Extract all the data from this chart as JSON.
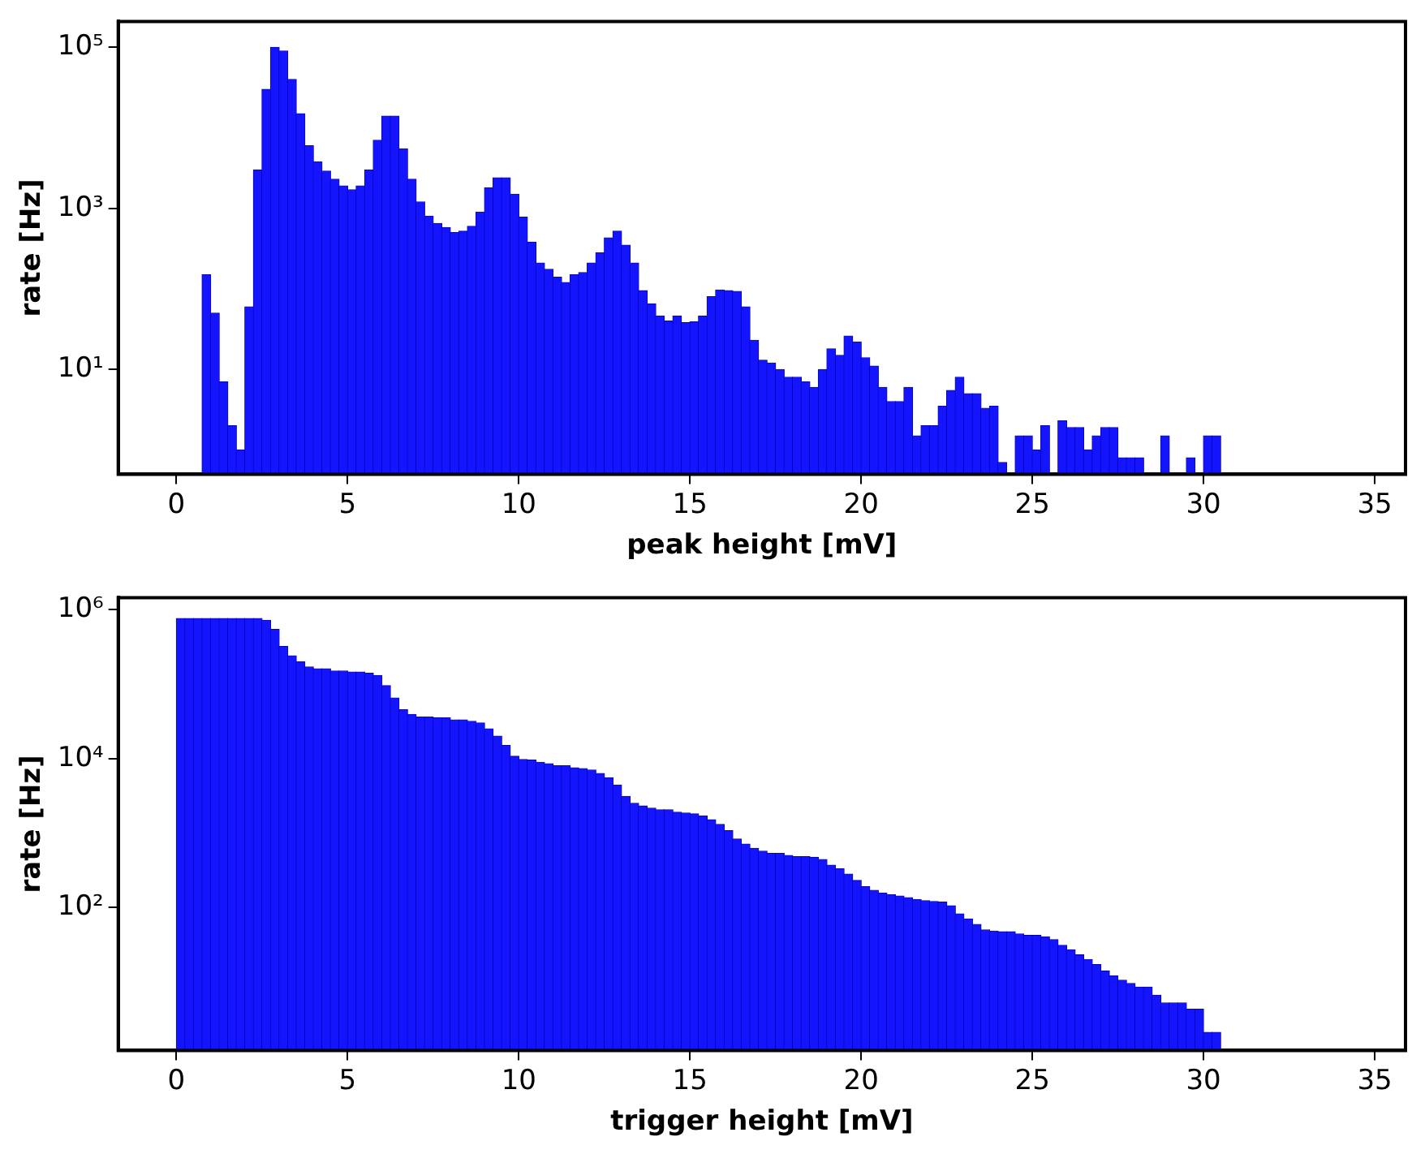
{
  "chart_data": [
    {
      "type": "histogram",
      "xlabel": "peak height [mV]",
      "ylabel": "rate [Hz]",
      "color": "#1414ff",
      "log": "y",
      "bins": [
        0.75,
        1,
        1.25,
        1.5,
        1.75,
        2,
        2.25,
        2.5,
        2.75,
        3,
        3.25,
        3.5,
        3.75,
        4,
        4.25,
        4.5,
        4.75,
        5,
        5.25,
        5.5,
        5.75,
        6,
        6.25,
        6.5,
        6.75,
        7,
        7.25,
        7.5,
        7.75,
        8,
        8.25,
        8.5,
        8.75,
        9,
        9.25,
        9.5,
        9.75,
        10,
        10.25,
        10.5,
        10.75,
        11,
        11.25,
        11.5,
        11.75,
        12,
        12.25,
        12.5,
        12.75,
        13,
        13.25,
        13.5,
        13.75,
        14,
        14.25,
        14.5,
        14.75,
        15,
        15.25,
        15.5,
        15.75,
        16,
        16.25,
        16.5,
        16.75,
        17,
        17.25,
        17.5,
        17.75,
        18,
        18.25,
        18.5,
        18.75,
        19,
        19.25,
        19.5,
        19.75,
        20,
        20.25,
        20.5,
        20.75,
        21,
        21.25,
        21.5,
        21.75,
        22,
        22.25,
        22.5,
        22.75,
        23,
        23.25,
        23.5,
        23.75,
        24,
        24.25,
        24.5,
        24.75,
        25,
        25.25,
        25.5,
        25.75,
        26,
        26.25,
        26.5,
        26.75,
        27,
        27.25,
        27.5,
        27.75,
        28,
        28.25,
        28.5,
        28.75,
        29,
        29.25,
        29.5,
        29.75,
        30,
        30.25,
        30.5
      ],
      "values": [
        150,
        50,
        7,
        2,
        1,
        60,
        3000,
        30000,
        100000,
        90000,
        40000,
        15000,
        6000,
        3800,
        2900,
        2300,
        1900,
        1700,
        1900,
        3000,
        7000,
        14000,
        14000,
        5500,
        2300,
        1200,
        800,
        650,
        580,
        500,
        520,
        600,
        900,
        1800,
        2400,
        2400,
        1500,
        780,
        380,
        210,
        175,
        140,
        120,
        150,
        160,
        210,
        280,
        430,
        520,
        350,
        210,
        95,
        65,
        46,
        40,
        46,
        38,
        39,
        46,
        80,
        97,
        95,
        93,
        60,
        23,
        13,
        12,
        10,
        8,
        8,
        7,
        6,
        10,
        18,
        15,
        26,
        22,
        14,
        11,
        6,
        4,
        4,
        6,
        1.5,
        2,
        2,
        3.5,
        5.5,
        8,
        5,
        5,
        3.3,
        3.5,
        0.7,
        null,
        1.5,
        1.5,
        1,
        2,
        null,
        2.3,
        1.9,
        1.9,
        1,
        1.5,
        1.9,
        1.9,
        0.8,
        0.8,
        0.8,
        null,
        null,
        1.5,
        null,
        null,
        0.8,
        null,
        1.5,
        1.5
      ],
      "xlim": [
        -1.7,
        35.9
      ],
      "xticks": [
        0,
        5,
        10,
        15,
        20,
        25,
        30,
        35
      ],
      "ylim": [
        0.5,
        210000
      ],
      "yticks": [
        {
          "value": 10,
          "label": "10¹"
        },
        {
          "value": 1000,
          "label": "10³"
        },
        {
          "value": 100000,
          "label": "10⁵"
        }
      ]
    },
    {
      "type": "histogram",
      "xlabel": "trigger height [mV]",
      "ylabel": "rate [Hz]",
      "color": "#1414ff",
      "log": "y",
      "bins": [
        0,
        0.25,
        0.5,
        0.75,
        1,
        1.25,
        1.5,
        1.75,
        2,
        2.25,
        2.5,
        2.75,
        3,
        3.25,
        3.5,
        3.75,
        4,
        4.25,
        4.5,
        4.75,
        5,
        5.25,
        5.5,
        5.75,
        6,
        6.25,
        6.5,
        6.75,
        7,
        7.25,
        7.5,
        7.75,
        8,
        8.25,
        8.5,
        8.75,
        9,
        9.25,
        9.5,
        9.75,
        10,
        10.25,
        10.5,
        10.75,
        11,
        11.25,
        11.5,
        11.75,
        12,
        12.25,
        12.5,
        12.75,
        13,
        13.25,
        13.5,
        13.75,
        14,
        14.25,
        14.5,
        14.75,
        15,
        15.25,
        15.5,
        15.75,
        16,
        16.25,
        16.5,
        16.75,
        17,
        17.25,
        17.5,
        17.75,
        18,
        18.25,
        18.5,
        18.75,
        19,
        19.25,
        19.5,
        19.75,
        20,
        20.25,
        20.5,
        20.75,
        21,
        21.25,
        21.5,
        21.75,
        22,
        22.25,
        22.5,
        22.75,
        23,
        23.25,
        23.5,
        23.75,
        24,
        24.25,
        24.5,
        24.75,
        25,
        25.25,
        25.5,
        25.75,
        26,
        26.25,
        26.5,
        26.75,
        27,
        27.25,
        27.5,
        27.75,
        28,
        28.25,
        28.5,
        28.75,
        29,
        29.25,
        29.5,
        29.75,
        30,
        30.25,
        30.5
      ],
      "values": [
        760000,
        760000,
        760000,
        760000,
        760000,
        760000,
        760000,
        760000,
        760000,
        760000,
        720000,
        540000,
        320000,
        240000,
        200000,
        170000,
        160000,
        160000,
        150000,
        150000,
        145000,
        145000,
        140000,
        130000,
        95000,
        65000,
        45000,
        39000,
        36000,
        36000,
        35000,
        35000,
        33000,
        33000,
        31500,
        30000,
        25000,
        20000,
        15000,
        10700,
        9700,
        9500,
        8900,
        8500,
        8000,
        8000,
        7500,
        7300,
        7000,
        6300,
        5500,
        4400,
        3100,
        2500,
        2300,
        2150,
        2050,
        2050,
        1900,
        1850,
        1800,
        1700,
        1500,
        1300,
        1070,
        830,
        710,
        620,
        570,
        530,
        530,
        500,
        480,
        480,
        470,
        440,
        370,
        330,
        280,
        230,
        190,
        170,
        155,
        148,
        142,
        135,
        128,
        123,
        120,
        118,
        105,
        82,
        70,
        59,
        50,
        48,
        47,
        47,
        44,
        42,
        42,
        40,
        37,
        31,
        27,
        23,
        20,
        17,
        14,
        12,
        10.5,
        9.5,
        8.5,
        8.5,
        6.6,
        5.2,
        5.2,
        5.2,
        4.3,
        4.3,
        2.1,
        2.1
      ],
      "xlim": [
        -1.7,
        35.9
      ],
      "xticks": [
        0,
        5,
        10,
        15,
        20,
        25,
        30,
        35
      ],
      "ylim": [
        1.2,
        1450000
      ],
      "yticks": [
        {
          "value": 100,
          "label": "10²"
        },
        {
          "value": 10000,
          "label": "10⁴"
        },
        {
          "value": 1000000,
          "label": "10⁶"
        }
      ]
    }
  ]
}
